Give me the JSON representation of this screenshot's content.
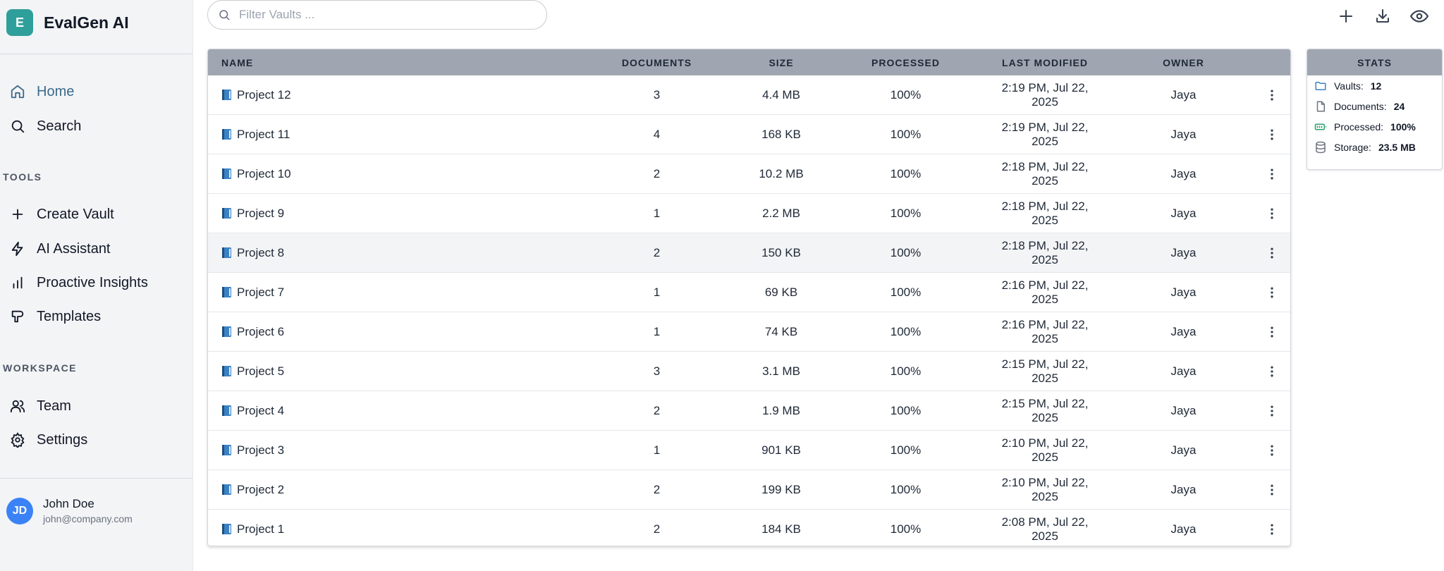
{
  "app": {
    "logo_letter": "E",
    "name": "EvalGen AI"
  },
  "nav": {
    "main": [
      {
        "label": "Home",
        "icon": "home-icon"
      },
      {
        "label": "Search",
        "icon": "search-icon"
      }
    ],
    "tools_label": "TOOLS",
    "tools": [
      {
        "label": "Create Vault",
        "icon": "plus-icon"
      },
      {
        "label": "AI Assistant",
        "icon": "lightning-icon"
      },
      {
        "label": "Proactive Insights",
        "icon": "bar-chart-icon"
      },
      {
        "label": "Templates",
        "icon": "template-icon"
      }
    ],
    "workspace_label": "WORKSPACE",
    "workspace": [
      {
        "label": "Team",
        "icon": "users-icon"
      },
      {
        "label": "Settings",
        "icon": "gear-icon"
      }
    ]
  },
  "user": {
    "initials": "JD",
    "name": "John Doe",
    "email": "john@company.com"
  },
  "search": {
    "placeholder": "Filter Vaults ..."
  },
  "table": {
    "headers": {
      "name": "NAME",
      "documents": "DOCUMENTS",
      "size": "SIZE",
      "processed": "PROCESSED",
      "last_modified": "LAST MODIFIED",
      "owner": "OWNER"
    },
    "rows": [
      {
        "name": "Project 12",
        "documents": "3",
        "size": "4.4 MB",
        "processed": "100%",
        "last_modified": "2:19 PM, Jul 22, 2025",
        "owner": "Jaya"
      },
      {
        "name": "Project 11",
        "documents": "4",
        "size": "168 KB",
        "processed": "100%",
        "last_modified": "2:19 PM, Jul 22, 2025",
        "owner": "Jaya"
      },
      {
        "name": "Project 10",
        "documents": "2",
        "size": "10.2 MB",
        "processed": "100%",
        "last_modified": "2:18 PM, Jul 22, 2025",
        "owner": "Jaya"
      },
      {
        "name": "Project 9",
        "documents": "1",
        "size": "2.2 MB",
        "processed": "100%",
        "last_modified": "2:18 PM, Jul 22, 2025",
        "owner": "Jaya"
      },
      {
        "name": "Project 8",
        "documents": "2",
        "size": "150 KB",
        "processed": "100%",
        "last_modified": "2:18 PM, Jul 22, 2025",
        "owner": "Jaya"
      },
      {
        "name": "Project 7",
        "documents": "1",
        "size": "69 KB",
        "processed": "100%",
        "last_modified": "2:16 PM, Jul 22, 2025",
        "owner": "Jaya"
      },
      {
        "name": "Project 6",
        "documents": "1",
        "size": "74 KB",
        "processed": "100%",
        "last_modified": "2:16 PM, Jul 22, 2025",
        "owner": "Jaya"
      },
      {
        "name": "Project 5",
        "documents": "3",
        "size": "3.1 MB",
        "processed": "100%",
        "last_modified": "2:15 PM, Jul 22, 2025",
        "owner": "Jaya"
      },
      {
        "name": "Project 4",
        "documents": "2",
        "size": "1.9 MB",
        "processed": "100%",
        "last_modified": "2:15 PM, Jul 22, 2025",
        "owner": "Jaya"
      },
      {
        "name": "Project 3",
        "documents": "1",
        "size": "901 KB",
        "processed": "100%",
        "last_modified": "2:10 PM, Jul 22, 2025",
        "owner": "Jaya"
      },
      {
        "name": "Project 2",
        "documents": "2",
        "size": "199 KB",
        "processed": "100%",
        "last_modified": "2:10 PM, Jul 22, 2025",
        "owner": "Jaya"
      },
      {
        "name": "Project 1",
        "documents": "2",
        "size": "184 KB",
        "processed": "100%",
        "last_modified": "2:08 PM, Jul 22, 2025",
        "owner": "Jaya"
      }
    ]
  },
  "stats": {
    "title": "STATS",
    "items": [
      {
        "label": "Vaults:",
        "value": "12",
        "icon": "folder-icon"
      },
      {
        "label": "Documents:",
        "value": "24",
        "icon": "file-icon"
      },
      {
        "label": "Processed:",
        "value": "100%",
        "icon": "battery-icon"
      },
      {
        "label": "Storage:",
        "value": "23.5 MB",
        "icon": "database-icon"
      }
    ]
  },
  "colors": {
    "brand": "#2f9f9b",
    "header_bg": "#a0a6b1",
    "active_nav": "#3b6a8a",
    "avatar": "#3b82f6",
    "book_icon": "#3b82c4"
  }
}
